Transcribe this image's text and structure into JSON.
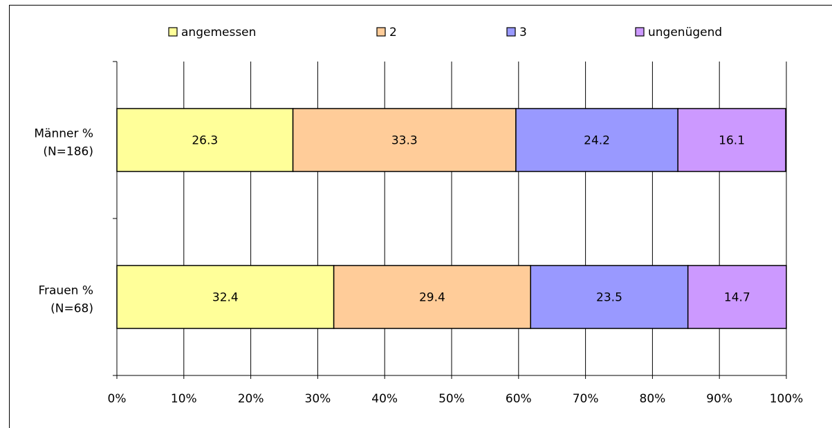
{
  "chart_data": {
    "type": "bar",
    "orientation": "horizontal",
    "stacked": "percent",
    "categories": [
      "Männer %\n(N=186)",
      "Frauen %\n(N=68)"
    ],
    "series": [
      {
        "name": "angemessen",
        "color": "#FFFF99",
        "values": [
          26.3,
          32.4
        ]
      },
      {
        "name": "2",
        "color": "#FFCC99",
        "values": [
          33.3,
          29.4
        ]
      },
      {
        "name": "3",
        "color": "#9999FF",
        "values": [
          24.2,
          23.5
        ]
      },
      {
        "name": "ungenügend",
        "color": "#CC99FF",
        "values": [
          16.1,
          14.7
        ]
      }
    ],
    "x_ticks": [
      "0%",
      "10%",
      "20%",
      "30%",
      "40%",
      "50%",
      "60%",
      "70%",
      "80%",
      "90%",
      "100%"
    ],
    "xlim": [
      0,
      100
    ],
    "grid": true,
    "legend_position": "top"
  }
}
